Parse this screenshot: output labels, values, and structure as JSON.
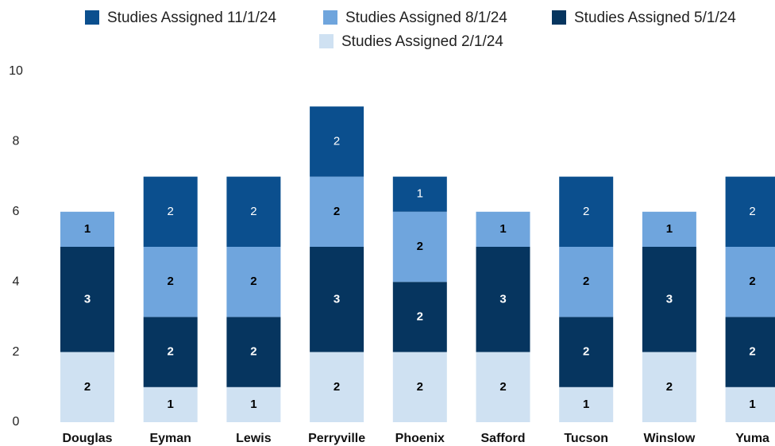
{
  "chart_data": {
    "type": "stacked_bar",
    "categories": [
      "Douglas",
      "Eyman",
      "Lewis",
      "Perryville",
      "Phoenix",
      "Safford",
      "Tucson",
      "Winslow",
      "Yuma"
    ],
    "series": [
      {
        "name": "Studies Assigned 11/1/24",
        "color": "#0b4f8e",
        "values": [
          null,
          2,
          2,
          2,
          1,
          null,
          2,
          null,
          2
        ]
      },
      {
        "name": "Studies Assigned 8/1/24",
        "color": "#6fa5dd",
        "values": [
          1,
          2,
          2,
          2,
          2,
          1,
          2,
          1,
          2
        ]
      },
      {
        "name": "Studies Assigned 5/1/24",
        "color": "#06355f",
        "values": [
          3,
          2,
          2,
          3,
          2,
          3,
          2,
          3,
          2
        ]
      },
      {
        "name": "Studies Assigned 2/1/24",
        "color": "#cfe1f2",
        "values": [
          2,
          1,
          1,
          2,
          2,
          2,
          1,
          2,
          1
        ]
      }
    ],
    "ylim": [
      0,
      10
    ],
    "yticks": [
      0,
      2,
      4,
      6,
      8,
      10
    ],
    "grid": false
  }
}
